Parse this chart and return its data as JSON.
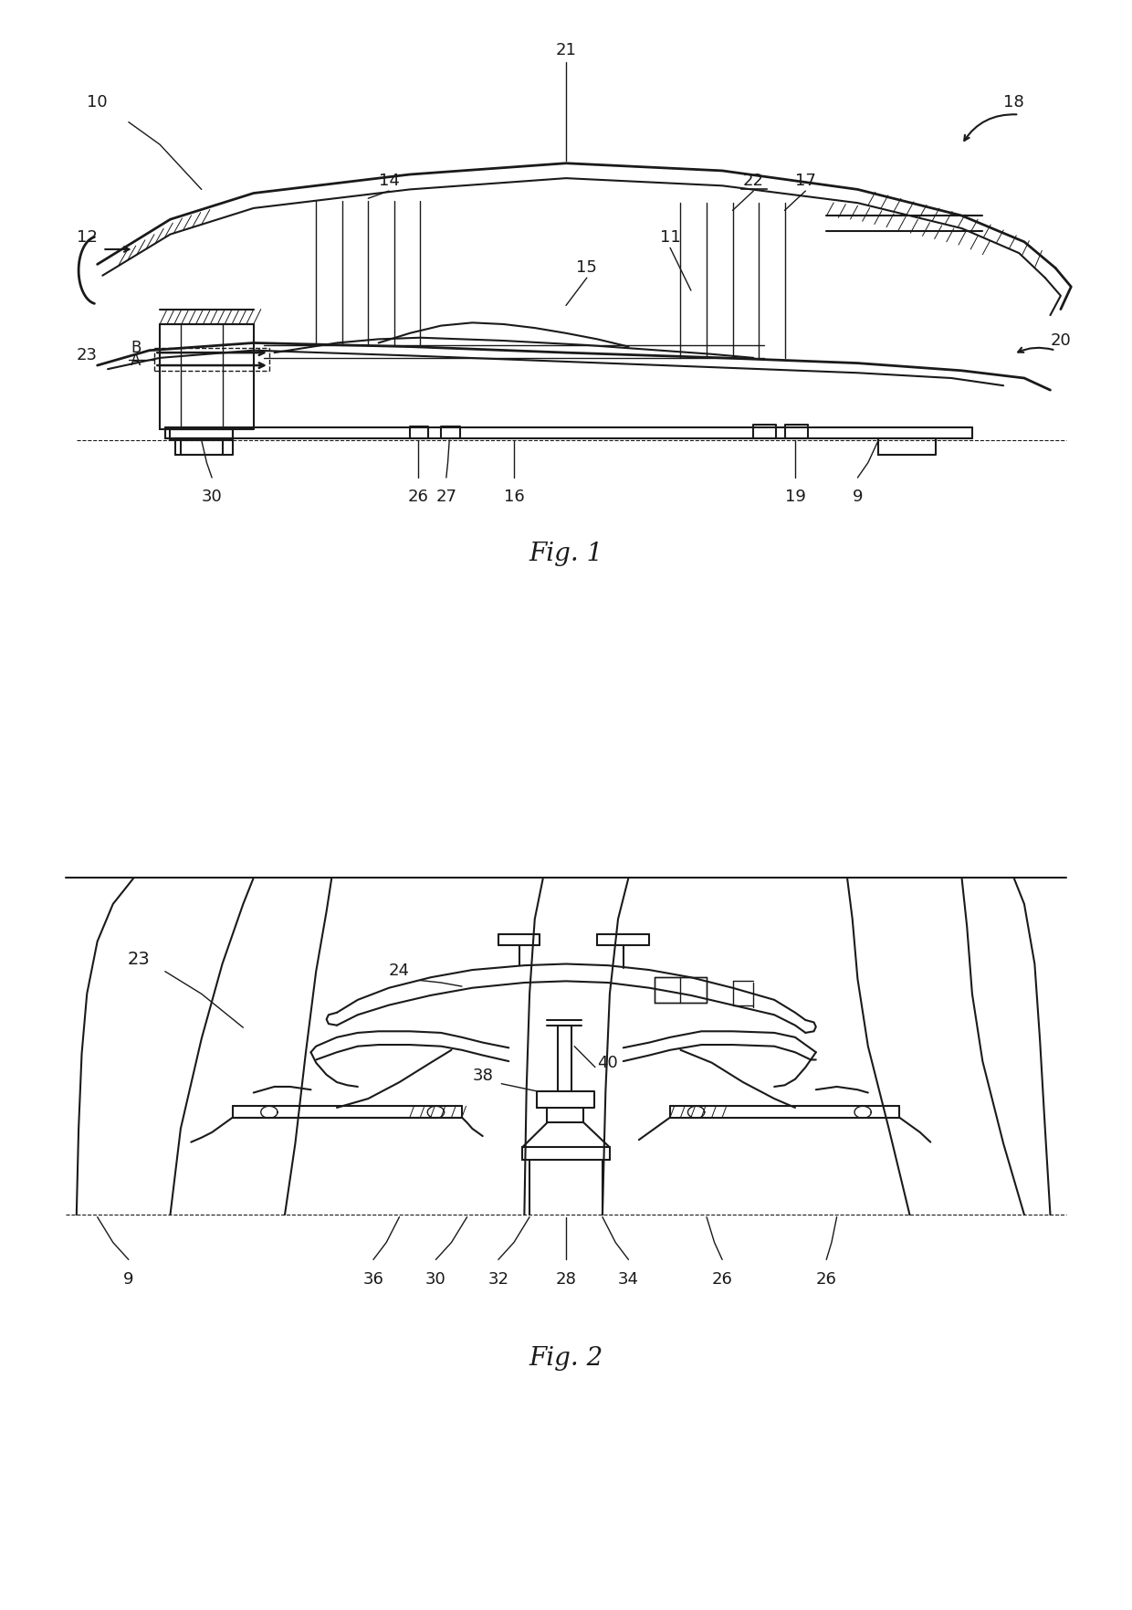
{
  "fig1_title": "Fig. 1",
  "fig2_title": "Fig. 2",
  "background_color": "#ffffff",
  "line_color": "#1a1a1a",
  "lw_heavy": 2.0,
  "lw_med": 1.5,
  "lw_thin": 1.0,
  "lw_hatch": 0.7,
  "fontsize_label": 13,
  "fontsize_title": 20
}
